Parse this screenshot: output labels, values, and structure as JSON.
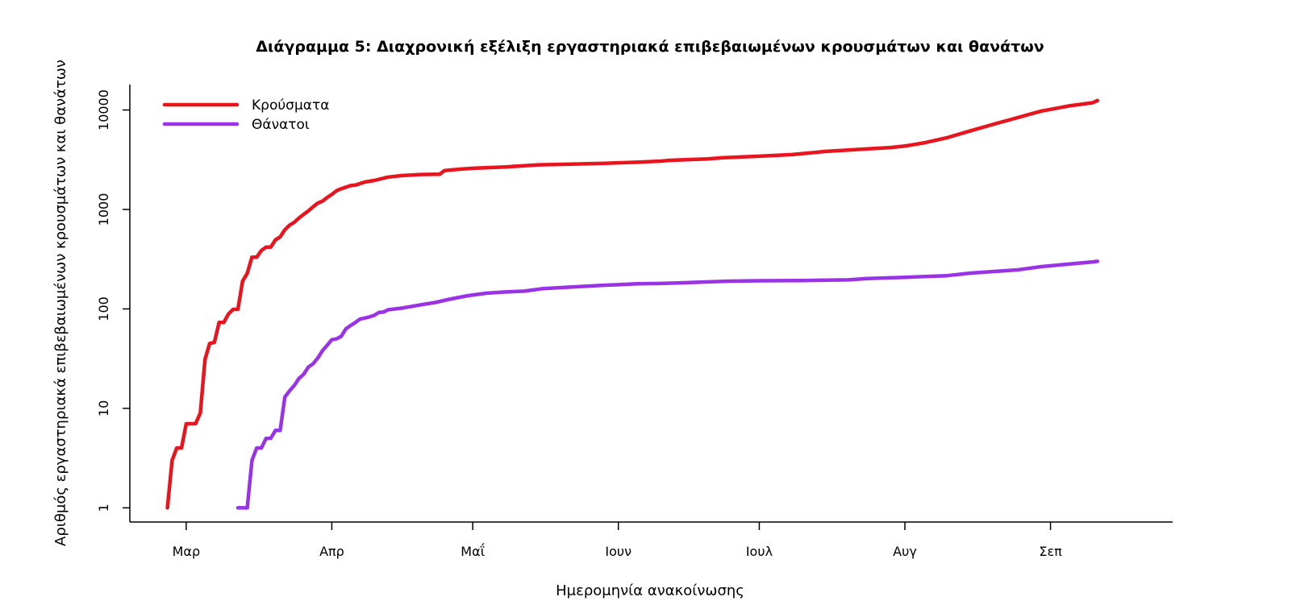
{
  "chart_data": {
    "type": "line",
    "title": "Διάγραμμα 5: Διαχρονική εξέλιξη εργαστηριακά επιβεβαιωμένων κρουσμάτων και θανάτων",
    "xlabel": "Ημερομηνία ανακοίνωσης",
    "ylabel": "Αριθμός εργαστηριακά επιβεβαιωμένων κρουσμάτων και θανάτων",
    "y_scale": "log",
    "ylim": [
      0.72,
      18000
    ],
    "xlim": [
      "2020-02-18",
      "2020-09-27"
    ],
    "x_ticks": [
      {
        "date": "2020-03-01",
        "label": "Μαρ"
      },
      {
        "date": "2020-04-01",
        "label": "Απρ"
      },
      {
        "date": "2020-05-01",
        "label": "Μαΐ"
      },
      {
        "date": "2020-06-01",
        "label": "Ιουν"
      },
      {
        "date": "2020-07-01",
        "label": "Ιουλ"
      },
      {
        "date": "2020-08-01",
        "label": "Αυγ"
      },
      {
        "date": "2020-09-01",
        "label": "Σεπ"
      }
    ],
    "y_ticks": [
      {
        "value": 1,
        "label": "1"
      },
      {
        "value": 10,
        "label": "10"
      },
      {
        "value": 100,
        "label": "100"
      },
      {
        "value": 1000,
        "label": "1000"
      },
      {
        "value": 10000,
        "label": "10000"
      }
    ],
    "legend_position": "top-left",
    "grid": false,
    "series": [
      {
        "name": "Κρούσματα",
        "color": "#e8141e",
        "points": [
          [
            "2020-02-26",
            1
          ],
          [
            "2020-02-27",
            3
          ],
          [
            "2020-02-28",
            4
          ],
          [
            "2020-02-29",
            4
          ],
          [
            "2020-03-01",
            7
          ],
          [
            "2020-03-03",
            7
          ],
          [
            "2020-03-04",
            9
          ],
          [
            "2020-03-05",
            31
          ],
          [
            "2020-03-06",
            45
          ],
          [
            "2020-03-07",
            46
          ],
          [
            "2020-03-08",
            73
          ],
          [
            "2020-03-09",
            73
          ],
          [
            "2020-03-10",
            89
          ],
          [
            "2020-03-11",
            99
          ],
          [
            "2020-03-12",
            99
          ],
          [
            "2020-03-13",
            190
          ],
          [
            "2020-03-14",
            228
          ],
          [
            "2020-03-15",
            331
          ],
          [
            "2020-03-16",
            331
          ],
          [
            "2020-03-17",
            387
          ],
          [
            "2020-03-18",
            418
          ],
          [
            "2020-03-19",
            418
          ],
          [
            "2020-03-20",
            495
          ],
          [
            "2020-03-21",
            530
          ],
          [
            "2020-03-22",
            624
          ],
          [
            "2020-03-23",
            695
          ],
          [
            "2020-03-24",
            743
          ],
          [
            "2020-03-25",
            821
          ],
          [
            "2020-03-26",
            892
          ],
          [
            "2020-03-27",
            966
          ],
          [
            "2020-03-28",
            1061
          ],
          [
            "2020-03-29",
            1156
          ],
          [
            "2020-03-30",
            1212
          ],
          [
            "2020-03-31",
            1314
          ],
          [
            "2020-04-01",
            1415
          ],
          [
            "2020-04-02",
            1544
          ],
          [
            "2020-04-03",
            1613
          ],
          [
            "2020-04-04",
            1673
          ],
          [
            "2020-04-05",
            1735
          ],
          [
            "2020-04-06",
            1755
          ],
          [
            "2020-04-08",
            1884
          ],
          [
            "2020-04-10",
            1955
          ],
          [
            "2020-04-13",
            2114
          ],
          [
            "2020-04-16",
            2192
          ],
          [
            "2020-04-20",
            2245
          ],
          [
            "2020-04-24",
            2263
          ],
          [
            "2020-04-25",
            2463
          ],
          [
            "2020-04-28",
            2534
          ],
          [
            "2020-05-01",
            2591
          ],
          [
            "2020-05-08",
            2678
          ],
          [
            "2020-05-15",
            2810
          ],
          [
            "2020-05-22",
            2850
          ],
          [
            "2020-05-29",
            2909
          ],
          [
            "2020-06-05",
            2980
          ],
          [
            "2020-06-10",
            3058
          ],
          [
            "2020-06-12",
            3121
          ],
          [
            "2020-06-20",
            3227
          ],
          [
            "2020-06-23",
            3302
          ],
          [
            "2020-07-01",
            3432
          ],
          [
            "2020-07-08",
            3562
          ],
          [
            "2020-07-15",
            3826
          ],
          [
            "2020-07-22",
            4012
          ],
          [
            "2020-07-29",
            4193
          ],
          [
            "2020-08-01",
            4337
          ],
          [
            "2020-08-05",
            4662
          ],
          [
            "2020-08-10",
            5270
          ],
          [
            "2020-08-15",
            6177
          ],
          [
            "2020-08-20",
            7224
          ],
          [
            "2020-08-25",
            8381
          ],
          [
            "2020-08-30",
            9741
          ],
          [
            "2020-09-05",
            10998
          ],
          [
            "2020-09-10",
            11832
          ],
          [
            "2020-09-11",
            12452
          ]
        ]
      },
      {
        "name": "Θάνατοι",
        "color": "#9a32e6",
        "points": [
          [
            "2020-03-12",
            1
          ],
          [
            "2020-03-14",
            1
          ],
          [
            "2020-03-15",
            3
          ],
          [
            "2020-03-16",
            4
          ],
          [
            "2020-03-17",
            4
          ],
          [
            "2020-03-18",
            5
          ],
          [
            "2020-03-19",
            5
          ],
          [
            "2020-03-20",
            6
          ],
          [
            "2020-03-21",
            6
          ],
          [
            "2020-03-22",
            13
          ],
          [
            "2020-03-23",
            15
          ],
          [
            "2020-03-24",
            17
          ],
          [
            "2020-03-25",
            20
          ],
          [
            "2020-03-26",
            22
          ],
          [
            "2020-03-27",
            26
          ],
          [
            "2020-03-28",
            28
          ],
          [
            "2020-03-29",
            32
          ],
          [
            "2020-03-30",
            38
          ],
          [
            "2020-03-31",
            43
          ],
          [
            "2020-04-01",
            49
          ],
          [
            "2020-04-02",
            50
          ],
          [
            "2020-04-03",
            53
          ],
          [
            "2020-04-04",
            63
          ],
          [
            "2020-04-05",
            68
          ],
          [
            "2020-04-06",
            73
          ],
          [
            "2020-04-07",
            79
          ],
          [
            "2020-04-08",
            81
          ],
          [
            "2020-04-09",
            83
          ],
          [
            "2020-04-10",
            86
          ],
          [
            "2020-04-11",
            92
          ],
          [
            "2020-04-12",
            93
          ],
          [
            "2020-04-13",
            98
          ],
          [
            "2020-04-16",
            102
          ],
          [
            "2020-04-20",
            110
          ],
          [
            "2020-04-23",
            116
          ],
          [
            "2020-04-26",
            125
          ],
          [
            "2020-04-30",
            136
          ],
          [
            "2020-05-04",
            144
          ],
          [
            "2020-05-08",
            148
          ],
          [
            "2020-05-12",
            151
          ],
          [
            "2020-05-16",
            160
          ],
          [
            "2020-05-21",
            165
          ],
          [
            "2020-05-28",
            172
          ],
          [
            "2020-06-01",
            175
          ],
          [
            "2020-06-05",
            179
          ],
          [
            "2020-06-10",
            180
          ],
          [
            "2020-06-15",
            183
          ],
          [
            "2020-06-20",
            187
          ],
          [
            "2020-06-25",
            190
          ],
          [
            "2020-07-01",
            192
          ],
          [
            "2020-07-10",
            193
          ],
          [
            "2020-07-20",
            196
          ],
          [
            "2020-07-24",
            202
          ],
          [
            "2020-08-01",
            208
          ],
          [
            "2020-08-10",
            216
          ],
          [
            "2020-08-15",
            229
          ],
          [
            "2020-08-20",
            238
          ],
          [
            "2020-08-25",
            247
          ],
          [
            "2020-08-30",
            266
          ],
          [
            "2020-09-05",
            283
          ],
          [
            "2020-09-10",
            297
          ],
          [
            "2020-09-11",
            301
          ]
        ]
      }
    ]
  }
}
